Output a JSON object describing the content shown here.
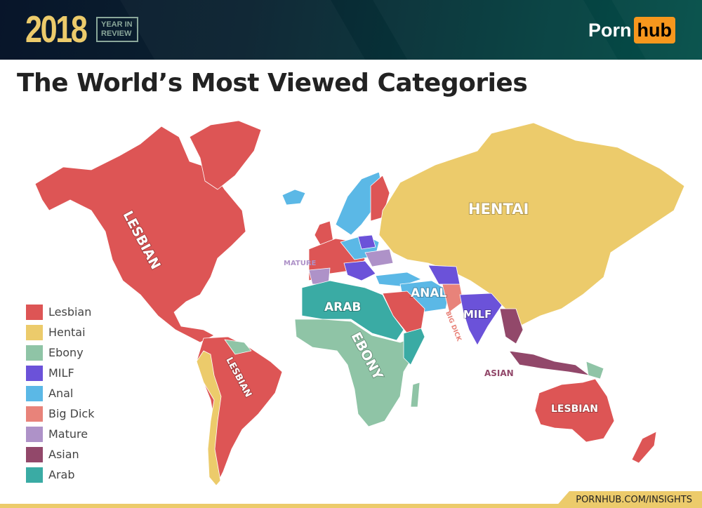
{
  "header": {
    "year": "2018",
    "badge_line1": "YEAR IN",
    "badge_line2": "REVIEW",
    "logo_part1": "Porn",
    "logo_part2": "hub"
  },
  "title": "The World’s Most Viewed Categories",
  "legend": [
    {
      "label": "Lesbian",
      "color": "#dd5555"
    },
    {
      "label": "Hentai",
      "color": "#eccb6b"
    },
    {
      "label": "Ebony",
      "color": "#8fc4a6"
    },
    {
      "label": "MILF",
      "color": "#6b52d9"
    },
    {
      "label": "Anal",
      "color": "#5bb8e6"
    },
    {
      "label": "Big Dick",
      "color": "#e8837a"
    },
    {
      "label": "Mature",
      "color": "#ae92c8"
    },
    {
      "label": "Asian",
      "color": "#92486a"
    },
    {
      "label": "Arab",
      "color": "#3aaba4"
    }
  ],
  "map_labels": {
    "north_america": "LESBIAN",
    "south_america": "LESBIAN",
    "australia": "LESBIAN",
    "russia_china": "HENTAI",
    "africa": "EBONY",
    "north_africa": "ARAB",
    "middle_east": "ANAL",
    "india": "MILF",
    "pakistan": "BIG DICK",
    "southeast_asia": "ASIAN",
    "europe": "MATURE"
  },
  "footer": "PORNHUB.COM/INSIGHTS"
}
